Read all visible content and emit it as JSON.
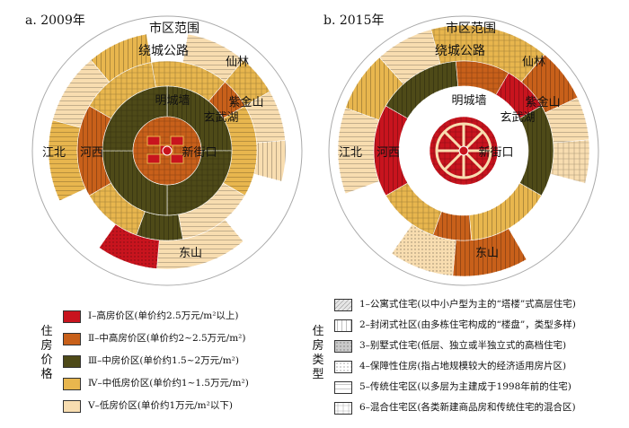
{
  "colors": {
    "very_high": "#c8141e",
    "high": "#c8601a",
    "mid": "#4e4a18",
    "mid_low": "#e8b64e",
    "low": "#f8ddb0"
  },
  "panel_a": {
    "title": "a. 2009年",
    "labels": {
      "city": "市区范围",
      "ring": "绕城公路",
      "xianlin": "仙林",
      "zijinshan": "紫金山",
      "wall": "明城墙",
      "xuanwu": "玄武湖",
      "jiangbei": "江北",
      "hexi": "河西",
      "xinjiekou": "新街口",
      "dongshan": "东山"
    }
  },
  "panel_b": {
    "title": "b. 2015年",
    "labels": {
      "city": "市区范围",
      "ring": "绕城公路",
      "xianlin": "仙林",
      "zijinshan": "紫金山",
      "wall": "明城墙",
      "xuanwu": "玄武湖",
      "jiangbei": "江北",
      "hexi": "河西",
      "xinjiekou": "新街口",
      "dongshan": "东山"
    }
  },
  "price_legend": {
    "title": [
      "住",
      "房",
      "价",
      "格"
    ],
    "items": [
      {
        "num": "Ⅰ",
        "text": "–高房价区(单价约2.5万元/m²以上)"
      },
      {
        "num": "Ⅱ",
        "text": "–中高房价区(单价约2~2.5万元/m²)"
      },
      {
        "num": "Ⅲ",
        "text": "–中房价区(单价约1.5~2万元/m²)"
      },
      {
        "num": "Ⅳ",
        "text": "–中低房价区(单价约1~1.5万元/m²)"
      },
      {
        "num": "Ⅴ",
        "text": "–低房价区(单价约1万元/m²以下)"
      }
    ]
  },
  "type_legend": {
    "title": [
      "住",
      "房",
      "类",
      "型"
    ],
    "items": [
      {
        "text": "1–公寓式住宅(以中小户型为主的“塔楼”式高层住宅)"
      },
      {
        "text": "2–封闭式社区(由多栋住宅构成的“楼盘”，类型多样)"
      },
      {
        "text": "3–别墅式住宅(低层、独立或半独立式的高档住宅)"
      },
      {
        "text": "4–保障性住房(指占地规模较大的经济适用房片区)"
      },
      {
        "text": "5–传统住宅区(以多层为主建成于1998年前的住宅)"
      },
      {
        "text": "6–混合住宅区(各类新建商品房和传统住宅的混合区)"
      }
    ]
  }
}
